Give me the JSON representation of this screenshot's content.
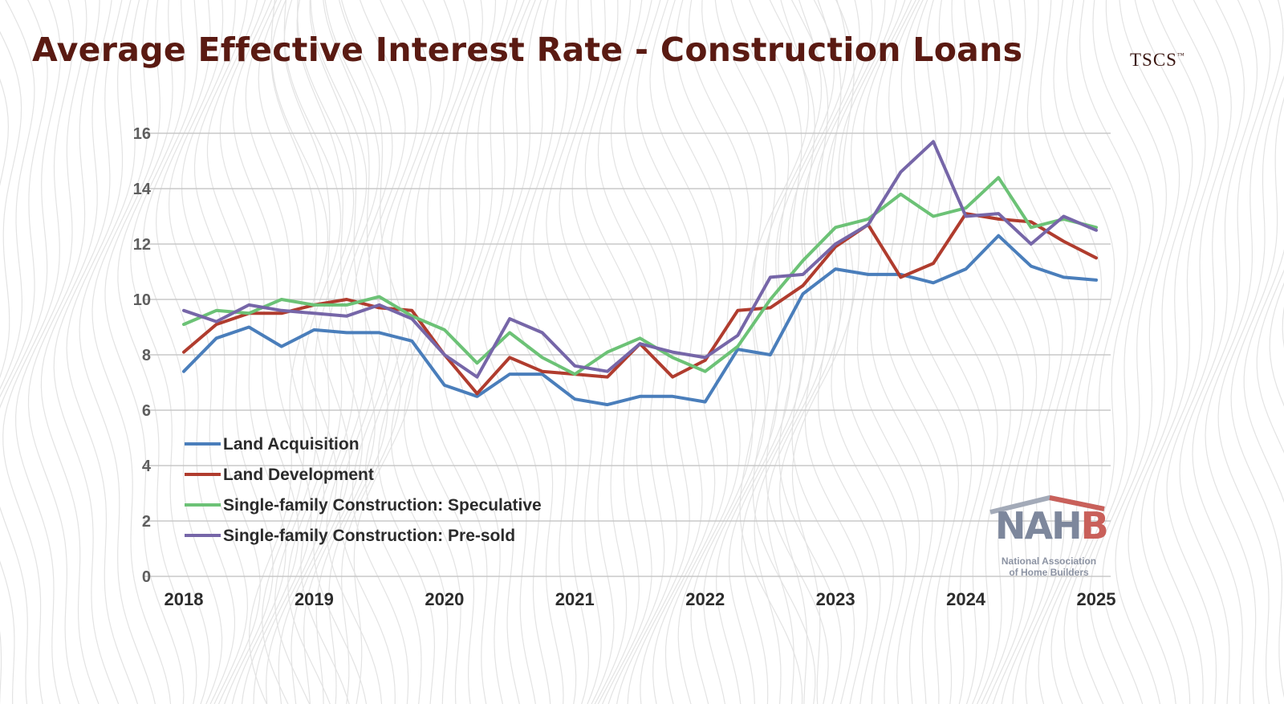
{
  "title": "Average Effective Interest Rate - Construction Loans",
  "brand": {
    "name": "TSCS",
    "mark": "™"
  },
  "source_logo": {
    "wordmark_prefix": "NAH",
    "wordmark_suffix": "B",
    "subtitle_line1": "National Association",
    "subtitle_line2": "of Home Builders",
    "colors": {
      "gray": "#7d879c",
      "red": "#c9605a"
    }
  },
  "chart_data": {
    "type": "line",
    "title": "Average Effective Interest Rate - Construction Loans",
    "xlabel": "",
    "ylabel": "",
    "ylim": [
      0,
      16
    ],
    "yticks": [
      "0",
      "2",
      "4",
      "6",
      "8",
      "10",
      "12",
      "14",
      "16"
    ],
    "xlim": [
      2018,
      2025
    ],
    "xticks": [
      "2018",
      "2019",
      "2020",
      "2021",
      "2022",
      "2023",
      "2024",
      "2025"
    ],
    "grid": true,
    "legend_position": "bottom-left",
    "x": [
      2018,
      2018.25,
      2018.5,
      2018.75,
      2019,
      2019.25,
      2019.5,
      2019.75,
      2020,
      2020.25,
      2020.5,
      2020.75,
      2021,
      2021.25,
      2021.5,
      2021.75,
      2022,
      2022.25,
      2022.5,
      2022.75,
      2023,
      2023.25,
      2023.5,
      2023.75,
      2024,
      2024.25,
      2024.5,
      2024.75,
      2025
    ],
    "series": [
      {
        "name": "Land Acquisition",
        "color": "#4a7ebb",
        "values": [
          7.4,
          8.6,
          9.0,
          8.3,
          8.9,
          8.8,
          8.8,
          8.5,
          6.9,
          6.5,
          7.3,
          7.3,
          6.4,
          6.2,
          6.5,
          6.5,
          6.3,
          8.2,
          8.0,
          10.2,
          11.1,
          10.9,
          10.9,
          10.6,
          11.1,
          12.3,
          11.2,
          10.8,
          10.7
        ]
      },
      {
        "name": "Land Development",
        "color": "#b03c2e",
        "values": [
          8.1,
          9.1,
          9.5,
          9.5,
          9.8,
          10.0,
          9.7,
          9.6,
          8.0,
          6.6,
          7.9,
          7.4,
          7.3,
          7.2,
          8.4,
          7.2,
          7.8,
          9.6,
          9.7,
          10.5,
          11.9,
          12.7,
          10.8,
          11.3,
          13.1,
          12.9,
          12.8,
          12.1,
          11.5
        ]
      },
      {
        "name": "Single-family Construction: Speculative",
        "color": "#6cc276",
        "values": [
          9.1,
          9.6,
          9.5,
          10.0,
          9.8,
          9.8,
          10.1,
          9.4,
          8.9,
          7.7,
          8.8,
          7.9,
          7.3,
          8.1,
          8.6,
          7.9,
          7.4,
          8.3,
          10.0,
          11.4,
          12.6,
          12.9,
          13.8,
          13.0,
          13.3,
          14.4,
          12.6,
          12.9,
          12.6
        ]
      },
      {
        "name": "Single-family Construction: Pre-sold",
        "color": "#7666a8",
        "values": [
          9.6,
          9.2,
          9.8,
          9.6,
          9.5,
          9.4,
          9.8,
          9.3,
          8.0,
          7.2,
          9.3,
          8.8,
          7.6,
          7.4,
          8.4,
          8.1,
          7.9,
          8.7,
          10.8,
          10.9,
          12.0,
          12.7,
          14.6,
          15.7,
          13.0,
          13.1,
          12.0,
          13.0,
          12.5
        ]
      }
    ]
  }
}
